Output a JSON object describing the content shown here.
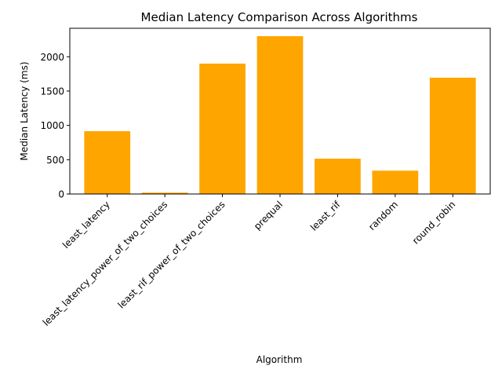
{
  "chart_data": {
    "type": "bar",
    "title": "Median Latency Comparison Across Algorithms",
    "xlabel": "Algorithm",
    "ylabel": "Median Latency (ms)",
    "categories": [
      "least_latency",
      "least_latency_power_of_two_choices",
      "least_rif_power_of_two_choices",
      "prequal",
      "least_rif",
      "random",
      "round_robin"
    ],
    "values": [
      915,
      20,
      1900,
      2300,
      515,
      340,
      1695
    ],
    "ylim": [
      0,
      2415
    ],
    "yticks": [
      0,
      500,
      1000,
      1500,
      2000
    ],
    "bar_color": "#FFA500",
    "grid": false,
    "legend": false
  }
}
